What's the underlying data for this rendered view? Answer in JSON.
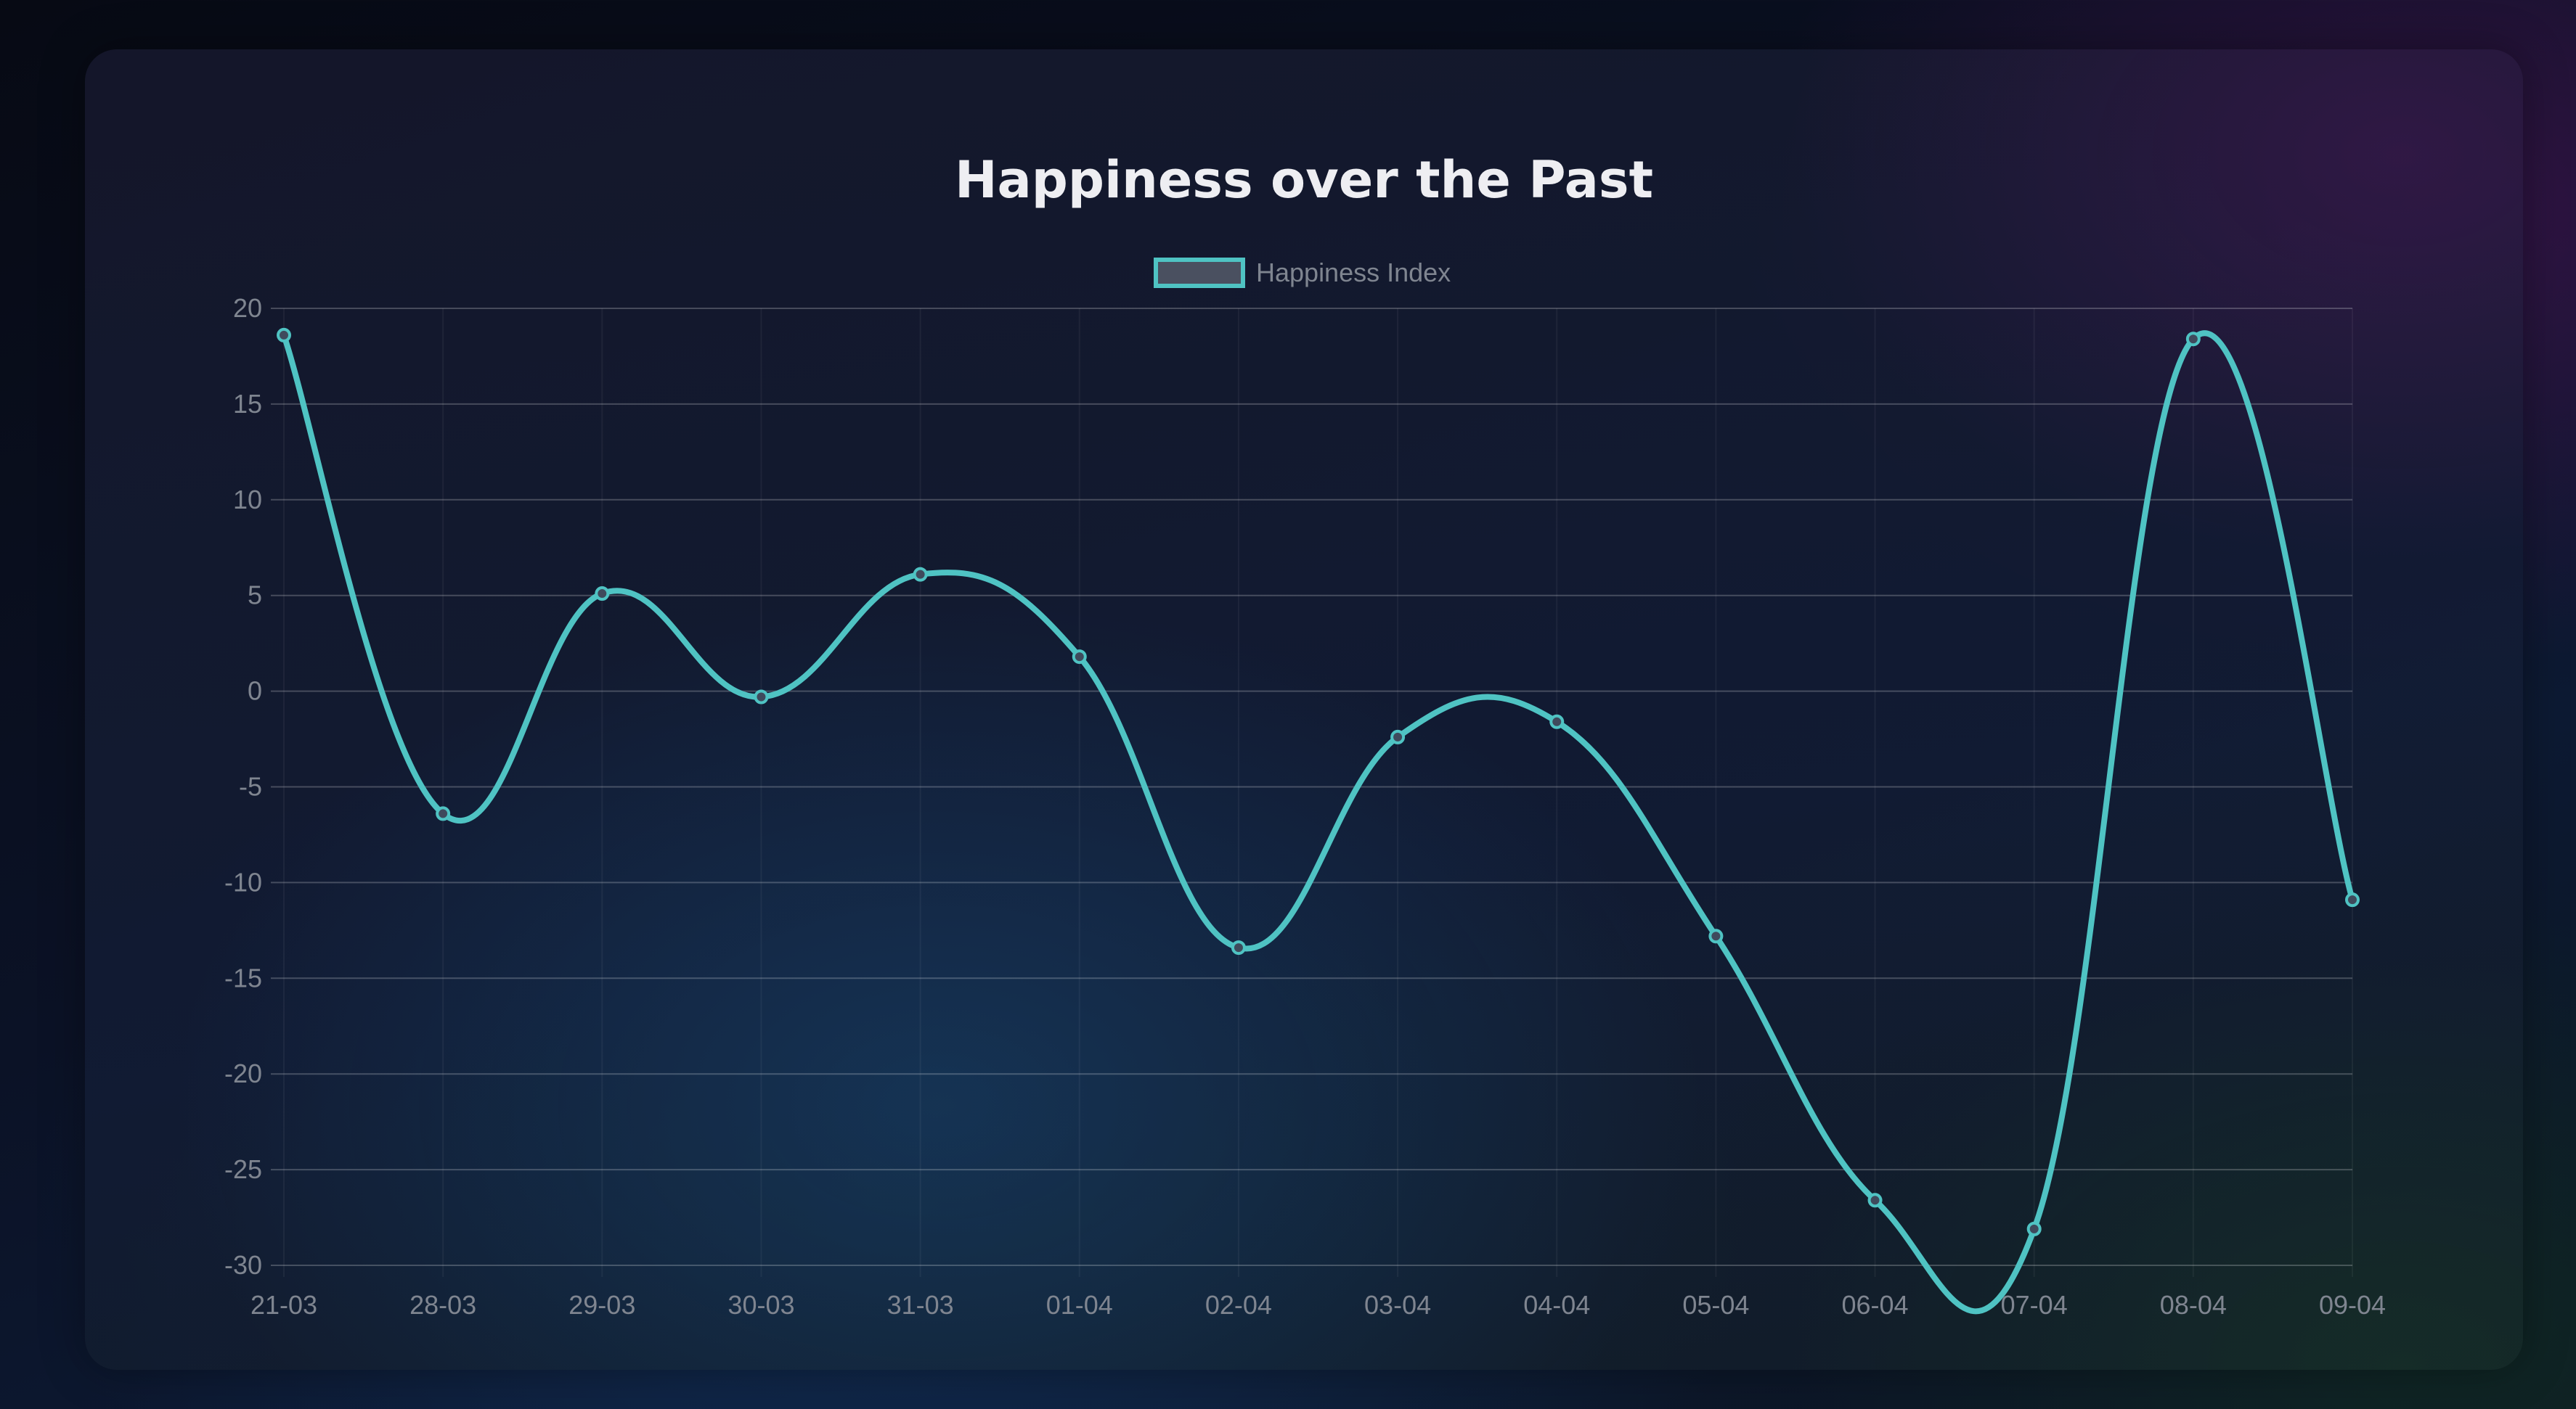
{
  "chart_data": {
    "type": "line",
    "title": "Happiness over the Past",
    "categories": [
      "21-03",
      "28-03",
      "29-03",
      "30-03",
      "31-03",
      "01-04",
      "02-04",
      "03-04",
      "04-04",
      "05-04",
      "06-04",
      "07-04",
      "08-04",
      "09-04"
    ],
    "series": [
      {
        "name": "Happiness Index",
        "values": [
          18.6,
          -6.4,
          5.1,
          -0.3,
          6.1,
          1.8,
          -13.4,
          -2.4,
          -1.6,
          -12.8,
          -26.6,
          -28.1,
          18.4,
          -10.9
        ]
      }
    ],
    "ylim": [
      -30,
      20
    ],
    "yticks": [
      "20",
      "15",
      "10",
      "5",
      "0",
      "-5",
      "-10",
      "-15",
      "-20",
      "-25",
      "-30"
    ],
    "xlabel": "",
    "ylabel": "",
    "grid": true,
    "legend": "top-center",
    "colors": {
      "line": "#4fc3c3",
      "point_fill": "#3f4a5c",
      "legend_fill": "#4a5060"
    }
  }
}
